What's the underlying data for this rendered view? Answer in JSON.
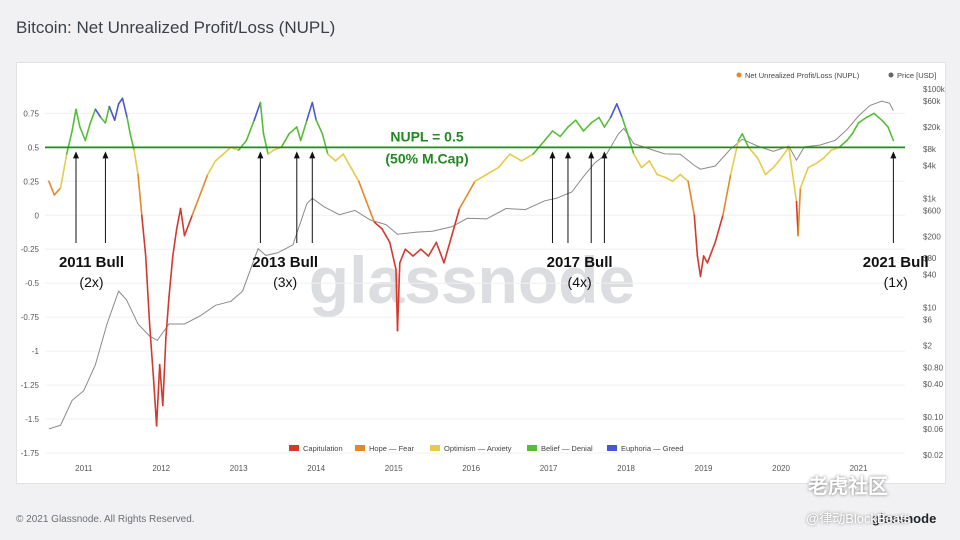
{
  "title": "Bitcoin: Net Unrealized Profit/Loss (NUPL)",
  "footer": {
    "copyright": "© 2021 Glassnode. All Rights Reserved.",
    "logo": "glassnode"
  },
  "watermark": {
    "center": "glassnode",
    "community": "老虎社区",
    "handle": "@律动BlockBeats"
  },
  "colors": {
    "capitulation": "#d3392d",
    "hope": "#e5882b",
    "optimism": "#e6cb4b",
    "belief": "#56bd37",
    "euphoria": "#4a57d4",
    "price": "#8a8a8a",
    "threshold": "#1f8a1f"
  },
  "chart_data": {
    "type": "line",
    "title": "Bitcoin: Net Unrealized Profit/Loss (NUPL)",
    "legend_top": [
      "Net Unrealized Profit/Loss (NUPL)",
      "Price [USD]"
    ],
    "legend_bottom": [
      "Capitulation",
      "Hope — Fear",
      "Optimism — Anxiety",
      "Belief — Denial",
      "Euphoria — Greed"
    ],
    "x_ticks": [
      "2011",
      "2012",
      "2013",
      "2014",
      "2015",
      "2016",
      "2017",
      "2018",
      "2019",
      "2020",
      "2021"
    ],
    "y_left_ticks": [
      "0.75",
      "0.5",
      "0.25",
      "0",
      "-0.25",
      "-0.5",
      "-0.75",
      "-1",
      "-1.25",
      "-1.5",
      "-1.75"
    ],
    "y_right_ticks": [
      "$100k",
      "$60k",
      "$20k",
      "$8k",
      "$4k",
      "$1k",
      "$600",
      "$200",
      "$80",
      "$40",
      "$10",
      "$6",
      "$2",
      "$0.80",
      "$0.40",
      "$0.10",
      "$0.06",
      "$0.02"
    ],
    "ylim_left": [
      -1.75,
      0.9
    ],
    "threshold": {
      "value": 0.5,
      "label_line1": "NUPL = 0.5",
      "label_line2": "(50% M.Cap)"
    },
    "annotations": [
      {
        "title": "2011 Bull",
        "subtitle": "(2x)",
        "arrows": [
          2010.9,
          2011.28
        ]
      },
      {
        "title": "2013 Bull",
        "subtitle": "(3x)",
        "arrows": [
          2013.28,
          2013.75,
          2013.95
        ]
      },
      {
        "title": "2017 Bull",
        "subtitle": "(4x)",
        "arrows": [
          2017.05,
          2017.25,
          2017.55,
          2017.72
        ]
      },
      {
        "title": "2021 Bull",
        "subtitle": "(1x)",
        "arrows": [
          2021.45
        ]
      }
    ],
    "series": [
      {
        "name": "Net Unrealized Profit/Loss (NUPL)",
        "points": [
          [
            2010.55,
            0.25
          ],
          [
            2010.62,
            0.15
          ],
          [
            2010.7,
            0.2
          ],
          [
            2010.78,
            0.45
          ],
          [
            2010.85,
            0.62
          ],
          [
            2010.9,
            0.78
          ],
          [
            2010.95,
            0.65
          ],
          [
            2011.02,
            0.55
          ],
          [
            2011.08,
            0.67
          ],
          [
            2011.15,
            0.78
          ],
          [
            2011.22,
            0.72
          ],
          [
            2011.28,
            0.68
          ],
          [
            2011.33,
            0.8
          ],
          [
            2011.4,
            0.7
          ],
          [
            2011.45,
            0.82
          ],
          [
            2011.5,
            0.86
          ],
          [
            2011.56,
            0.72
          ],
          [
            2011.6,
            0.6
          ],
          [
            2011.65,
            0.48
          ],
          [
            2011.7,
            0.3
          ],
          [
            2011.75,
            0.0
          ],
          [
            2011.8,
            -0.3
          ],
          [
            2011.85,
            -0.8
          ],
          [
            2011.9,
            -1.2
          ],
          [
            2011.94,
            -1.55
          ],
          [
            2011.98,
            -1.1
          ],
          [
            2012.02,
            -1.4
          ],
          [
            2012.06,
            -0.9
          ],
          [
            2012.1,
            -0.6
          ],
          [
            2012.15,
            -0.3
          ],
          [
            2012.2,
            -0.1
          ],
          [
            2012.25,
            0.05
          ],
          [
            2012.3,
            -0.15
          ],
          [
            2012.4,
            0.0
          ],
          [
            2012.5,
            0.15
          ],
          [
            2012.6,
            0.3
          ],
          [
            2012.7,
            0.4
          ],
          [
            2012.8,
            0.45
          ],
          [
            2012.9,
            0.5
          ],
          [
            2013.0,
            0.48
          ],
          [
            2013.1,
            0.55
          ],
          [
            2013.2,
            0.7
          ],
          [
            2013.28,
            0.83
          ],
          [
            2013.32,
            0.6
          ],
          [
            2013.38,
            0.45
          ],
          [
            2013.45,
            0.48
          ],
          [
            2013.55,
            0.5
          ],
          [
            2013.65,
            0.6
          ],
          [
            2013.75,
            0.65
          ],
          [
            2013.8,
            0.55
          ],
          [
            2013.88,
            0.7
          ],
          [
            2013.95,
            0.83
          ],
          [
            2014.0,
            0.7
          ],
          [
            2014.08,
            0.6
          ],
          [
            2014.15,
            0.45
          ],
          [
            2014.25,
            0.4
          ],
          [
            2014.35,
            0.45
          ],
          [
            2014.45,
            0.35
          ],
          [
            2014.55,
            0.25
          ],
          [
            2014.65,
            0.1
          ],
          [
            2014.75,
            -0.05
          ],
          [
            2014.85,
            -0.1
          ],
          [
            2014.95,
            -0.2
          ],
          [
            2015.03,
            -0.4
          ],
          [
            2015.05,
            -0.85
          ],
          [
            2015.08,
            -0.35
          ],
          [
            2015.15,
            -0.25
          ],
          [
            2015.25,
            -0.3
          ],
          [
            2015.35,
            -0.25
          ],
          [
            2015.45,
            -0.3
          ],
          [
            2015.55,
            -0.2
          ],
          [
            2015.65,
            -0.35
          ],
          [
            2015.75,
            -0.15
          ],
          [
            2015.85,
            0.05
          ],
          [
            2015.95,
            0.15
          ],
          [
            2016.05,
            0.25
          ],
          [
            2016.2,
            0.3
          ],
          [
            2016.35,
            0.35
          ],
          [
            2016.5,
            0.45
          ],
          [
            2016.65,
            0.4
          ],
          [
            2016.8,
            0.45
          ],
          [
            2016.95,
            0.55
          ],
          [
            2017.05,
            0.62
          ],
          [
            2017.15,
            0.58
          ],
          [
            2017.25,
            0.65
          ],
          [
            2017.35,
            0.7
          ],
          [
            2017.45,
            0.62
          ],
          [
            2017.55,
            0.68
          ],
          [
            2017.65,
            0.72
          ],
          [
            2017.72,
            0.65
          ],
          [
            2017.8,
            0.72
          ],
          [
            2017.88,
            0.82
          ],
          [
            2017.95,
            0.72
          ],
          [
            2018.02,
            0.6
          ],
          [
            2018.1,
            0.45
          ],
          [
            2018.2,
            0.35
          ],
          [
            2018.3,
            0.4
          ],
          [
            2018.4,
            0.3
          ],
          [
            2018.5,
            0.28
          ],
          [
            2018.6,
            0.25
          ],
          [
            2018.7,
            0.3
          ],
          [
            2018.8,
            0.25
          ],
          [
            2018.88,
            0.0
          ],
          [
            2018.92,
            -0.3
          ],
          [
            2018.96,
            -0.45
          ],
          [
            2019.0,
            -0.3
          ],
          [
            2019.05,
            -0.35
          ],
          [
            2019.15,
            -0.2
          ],
          [
            2019.25,
            0.0
          ],
          [
            2019.35,
            0.3
          ],
          [
            2019.45,
            0.55
          ],
          [
            2019.5,
            0.6
          ],
          [
            2019.58,
            0.5
          ],
          [
            2019.7,
            0.42
          ],
          [
            2019.8,
            0.3
          ],
          [
            2019.9,
            0.35
          ],
          [
            2020.0,
            0.42
          ],
          [
            2020.1,
            0.5
          ],
          [
            2020.2,
            0.1
          ],
          [
            2020.22,
            -0.15
          ],
          [
            2020.25,
            0.2
          ],
          [
            2020.35,
            0.35
          ],
          [
            2020.45,
            0.38
          ],
          [
            2020.55,
            0.42
          ],
          [
            2020.65,
            0.48
          ],
          [
            2020.75,
            0.5
          ],
          [
            2020.85,
            0.55
          ],
          [
            2020.92,
            0.6
          ],
          [
            2021.0,
            0.68
          ],
          [
            2021.1,
            0.72
          ],
          [
            2021.2,
            0.75
          ],
          [
            2021.3,
            0.7
          ],
          [
            2021.38,
            0.65
          ],
          [
            2021.45,
            0.55
          ]
        ]
      },
      {
        "name": "Price [USD]",
        "points": [
          [
            2010.55,
            0.06
          ],
          [
            2010.7,
            0.07
          ],
          [
            2010.85,
            0.2
          ],
          [
            2011.0,
            0.3
          ],
          [
            2011.15,
            0.9
          ],
          [
            2011.3,
            5
          ],
          [
            2011.45,
            20
          ],
          [
            2011.55,
            14
          ],
          [
            2011.7,
            5
          ],
          [
            2011.85,
            3
          ],
          [
            2011.95,
            2.5
          ],
          [
            2012.1,
            5
          ],
          [
            2012.3,
            5
          ],
          [
            2012.5,
            7
          ],
          [
            2012.7,
            11
          ],
          [
            2012.9,
            13
          ],
          [
            2013.05,
            20
          ],
          [
            2013.25,
            120
          ],
          [
            2013.35,
            90
          ],
          [
            2013.5,
            100
          ],
          [
            2013.7,
            140
          ],
          [
            2013.88,
            800
          ],
          [
            2013.95,
            1000
          ],
          [
            2014.1,
            700
          ],
          [
            2014.3,
            500
          ],
          [
            2014.5,
            600
          ],
          [
            2014.7,
            400
          ],
          [
            2014.9,
            330
          ],
          [
            2015.05,
            220
          ],
          [
            2015.3,
            240
          ],
          [
            2015.5,
            250
          ],
          [
            2015.75,
            300
          ],
          [
            2015.95,
            430
          ],
          [
            2016.2,
            420
          ],
          [
            2016.45,
            650
          ],
          [
            2016.7,
            620
          ],
          [
            2016.95,
            900
          ],
          [
            2017.1,
            1000
          ],
          [
            2017.3,
            1300
          ],
          [
            2017.45,
            2500
          ],
          [
            2017.6,
            4500
          ],
          [
            2017.75,
            6500
          ],
          [
            2017.9,
            15000
          ],
          [
            2017.97,
            19000
          ],
          [
            2018.1,
            10000
          ],
          [
            2018.3,
            8000
          ],
          [
            2018.5,
            6500
          ],
          [
            2018.7,
            6400
          ],
          [
            2018.88,
            4000
          ],
          [
            2018.96,
            3400
          ],
          [
            2019.15,
            3900
          ],
          [
            2019.35,
            8000
          ],
          [
            2019.5,
            12000
          ],
          [
            2019.7,
            9000
          ],
          [
            2019.9,
            7200
          ],
          [
            2020.1,
            9000
          ],
          [
            2020.2,
            5000
          ],
          [
            2020.3,
            8700
          ],
          [
            2020.5,
            9400
          ],
          [
            2020.7,
            11500
          ],
          [
            2020.85,
            18000
          ],
          [
            2021.0,
            32000
          ],
          [
            2021.15,
            50000
          ],
          [
            2021.3,
            60000
          ],
          [
            2021.4,
            55000
          ],
          [
            2021.45,
            40000
          ]
        ]
      }
    ]
  }
}
